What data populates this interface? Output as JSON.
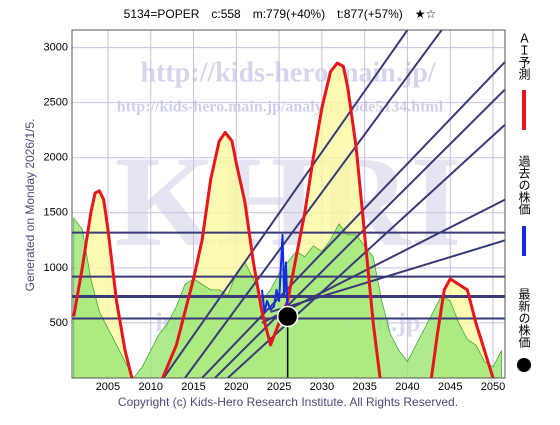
{
  "chart_data": {
    "type": "line",
    "title": "5134=POPER　c:558　m:779(+40%)　t:877(+57%)　★☆",
    "side_label": "Generated on Monday 2026/1/5.",
    "footer": "Copyright (c) Kids-Hero Research Institute. All Rights Reserved.",
    "watermarks": [
      "http://kids-hero.main.jp/",
      "http://kids-hero.main.jp/analysis/code5134.html",
      "KHRI",
      "info@kids-hero.main.jp"
    ],
    "xlim": [
      2000.8,
      2051.4
    ],
    "ylim": [
      0,
      3160
    ],
    "xticks": [
      2005,
      2010,
      2015,
      2020,
      2025,
      2030,
      2035,
      2040,
      2045,
      2050
    ],
    "yticks": [
      500,
      1000,
      1500,
      2000,
      2500,
      3000
    ],
    "grid": true,
    "series": [
      {
        "name": "ＡＩ予測",
        "color": "#e8141e",
        "x": [
          2001,
          2002,
          2003,
          2003.5,
          2004,
          2004.5,
          2005,
          2006,
          2007,
          2007.8,
          2009,
          2011.4,
          2013,
          2014,
          2015,
          2016,
          2017,
          2018,
          2018.7,
          2019.5,
          2020,
          2021,
          2022,
          2023,
          2024,
          2025,
          2026,
          2027,
          2028,
          2029,
          2030,
          2031,
          2031.8,
          2032.5,
          2033,
          2034,
          2035,
          2036,
          2036.8,
          2040,
          2042.8,
          2043.5,
          2044.3,
          2045,
          2046,
          2047,
          2048,
          2049,
          2050
        ],
        "values": [
          560,
          1000,
          1500,
          1680,
          1700,
          1620,
          1350,
          700,
          250,
          0,
          null,
          0,
          300,
          600,
          900,
          1250,
          1800,
          2150,
          2230,
          2150,
          1950,
          1600,
          1050,
          600,
          300,
          500,
          700,
          1100,
          1500,
          2000,
          2450,
          2780,
          2860,
          2830,
          2650,
          2100,
          1300,
          500,
          0,
          null,
          0,
          400,
          800,
          900,
          850,
          800,
          500,
          250,
          0
        ]
      },
      {
        "name": "過去の株価",
        "color": "#1428e6",
        "x": [
          2023,
          2023.3,
          2023.6,
          2024,
          2024.4,
          2024.7,
          2025,
          2025.2,
          2025.4,
          2025.6,
          2025.8,
          2026
        ],
        "values": [
          800,
          600,
          700,
          620,
          650,
          800,
          700,
          1000,
          1300,
          750,
          1050,
          558
        ]
      },
      {
        "name": "最新の株価",
        "color": "#000000",
        "x": [
          2026
        ],
        "values": [
          558
        ]
      }
    ],
    "green_area": {
      "color": "#9fe87a",
      "x": [
        2001,
        2002,
        2003,
        2004,
        2005,
        2006,
        2007,
        2008,
        2009,
        2010,
        2011,
        2012,
        2013,
        2014,
        2015,
        2016,
        2017,
        2018,
        2019,
        2020,
        2021,
        2022,
        2023,
        2024,
        2025,
        2026,
        2027,
        2028,
        2029,
        2030,
        2031,
        2032,
        2033,
        2034,
        2035,
        2036,
        2037,
        2038,
        2039,
        2040,
        2041,
        2042,
        2043,
        2044,
        2045,
        2046,
        2047,
        2048,
        2049,
        2050,
        2051
      ],
      "values": [
        1450,
        1350,
        900,
        600,
        450,
        300,
        150,
        0,
        100,
        250,
        400,
        500,
        650,
        850,
        900,
        850,
        800,
        800,
        750,
        950,
        1050,
        900,
        700,
        800,
        950,
        1050,
        1150,
        1100,
        1200,
        1150,
        1250,
        1400,
        1300,
        1300,
        1200,
        1100,
        700,
        400,
        250,
        150,
        300,
        450,
        600,
        750,
        700,
        500,
        350,
        300,
        150,
        100,
        250
      ]
    },
    "hlines": [
      1320,
      920,
      740,
      540
    ],
    "trend_lines": [
      {
        "x": [
          2011.5,
          2040
        ],
        "values": [
          0,
          3160
        ]
      },
      {
        "x": [
          2014,
          2044
        ],
        "values": [
          0,
          3160
        ]
      },
      {
        "x": [
          2016,
          2051.4
        ],
        "values": [
          0,
          2870
        ]
      },
      {
        "x": [
          2017.5,
          2051.4
        ],
        "values": [
          0,
          2620
        ]
      },
      {
        "x": [
          2019,
          2051.4
        ],
        "values": [
          0,
          2300
        ]
      },
      {
        "x": [
          2023,
          2051.4
        ],
        "values": [
          500,
          1620
        ]
      },
      {
        "x": [
          2024,
          2051.4
        ],
        "values": [
          600,
          1250
        ]
      }
    ]
  }
}
